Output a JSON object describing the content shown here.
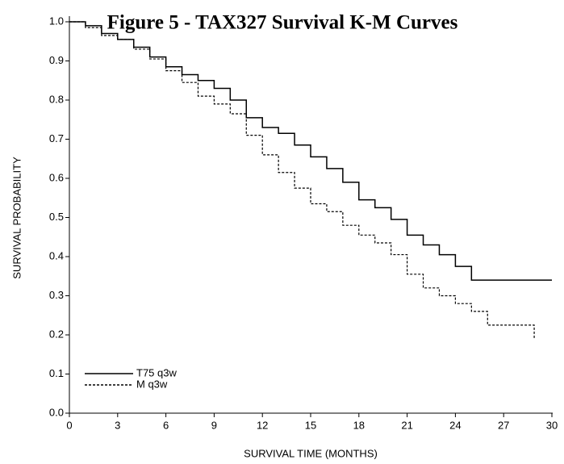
{
  "chart_data": {
    "type": "step",
    "title": "Figure 5 - TAX327 Survival K-M Curves",
    "x_label": "SURVIVAL TIME (MONTHS)",
    "y_label": "SURVIVAL PROBABILITY",
    "xlim": [
      0,
      30
    ],
    "ylim": [
      0,
      1
    ],
    "xticks": [
      0,
      3,
      6,
      9,
      12,
      15,
      18,
      21,
      24,
      27,
      30
    ],
    "yticks": [
      {
        "value": 0,
        "label": "0.0"
      },
      0.1,
      0.2,
      0.3,
      0.4,
      0.5,
      0.6,
      0.7,
      0.8,
      0.9,
      {
        "value": 1,
        "label": "1.0"
      }
    ],
    "legend": "lower left",
    "series": [
      {
        "name": "T75 q3w",
        "color": "#000000",
        "dash": "solid",
        "x": [
          0,
          1,
          2,
          3,
          4,
          5,
          6,
          7,
          8,
          9,
          10,
          11,
          12,
          13,
          14,
          15,
          16,
          17,
          18,
          19,
          20,
          21,
          22,
          23,
          24,
          25,
          30
        ],
        "values": [
          1.0,
          0.99,
          0.97,
          0.955,
          0.935,
          0.91,
          0.885,
          0.865,
          0.85,
          0.83,
          0.8,
          0.755,
          0.73,
          0.715,
          0.685,
          0.655,
          0.625,
          0.59,
          0.545,
          0.525,
          0.495,
          0.455,
          0.43,
          0.405,
          0.375,
          0.34,
          0.34
        ]
      },
      {
        "name": "M q3w",
        "color": "#000000",
        "dash": "dashed",
        "x": [
          0,
          1,
          2,
          3,
          4,
          5,
          6,
          7,
          8,
          9,
          10,
          11,
          12,
          13,
          14,
          15,
          16,
          17,
          18,
          19,
          20,
          21,
          22,
          23,
          24,
          25,
          26,
          28.9,
          28.9
        ],
        "values": [
          1.0,
          0.985,
          0.965,
          0.955,
          0.93,
          0.905,
          0.875,
          0.845,
          0.81,
          0.79,
          0.765,
          0.71,
          0.66,
          0.615,
          0.575,
          0.535,
          0.515,
          0.48,
          0.455,
          0.435,
          0.405,
          0.355,
          0.32,
          0.3,
          0.28,
          0.26,
          0.225,
          0.225,
          0.19
        ]
      }
    ]
  }
}
